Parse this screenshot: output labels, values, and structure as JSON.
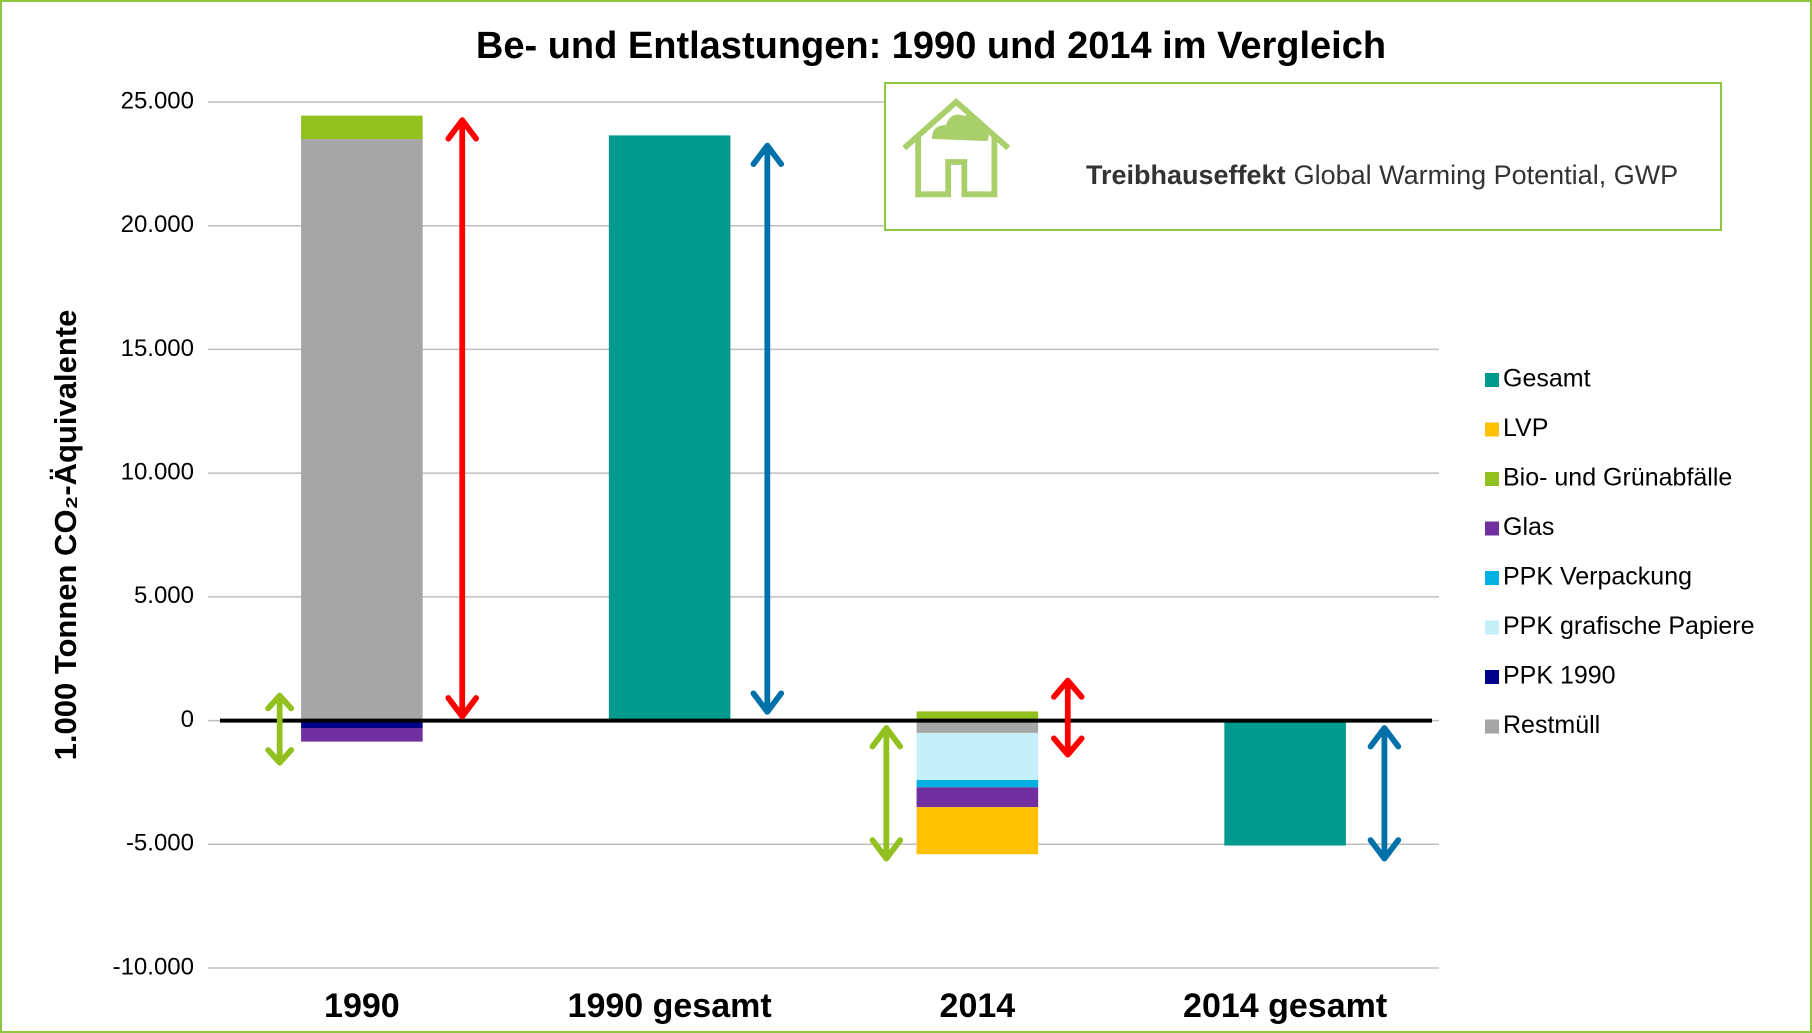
{
  "chart_data": {
    "type": "stacked_bar",
    "title": "Be- und Entlastungen: 1990 und 2014 im Vergleich",
    "ylabel": "1.000 Tonnen CO₂-Äquivalente",
    "annotation": {
      "bold": "Treibhauseffekt",
      "text": "Global Warming Potential, GWP"
    },
    "categories": [
      "1990",
      "1990 gesamt",
      "2014",
      "2014 gesamt"
    ],
    "series": [
      {
        "name": "Gesamt",
        "color": "#009a8e",
        "values": [
          null,
          23650,
          null,
          -5050
        ]
      },
      {
        "name": "LVP",
        "color": "#ffc000",
        "values": [
          null,
          null,
          -1900,
          null
        ]
      },
      {
        "name": "Bio- und Grünabfälle",
        "color": "#92c01f",
        "values": [
          950,
          null,
          370,
          null
        ]
      },
      {
        "name": "Glas",
        "color": "#7030a0",
        "values": [
          -550,
          null,
          -800,
          null
        ]
      },
      {
        "name": "PPK Verpackung",
        "color": "#00b0e0",
        "values": [
          null,
          null,
          -300,
          null
        ]
      },
      {
        "name": "PPK grafische Papiere",
        "color": "#c5f0fa",
        "values": [
          null,
          null,
          -1900,
          null
        ]
      },
      {
        "name": "PPK 1990",
        "color": "#00008b",
        "values": [
          -300,
          null,
          null,
          null
        ]
      },
      {
        "name": "Restmüll",
        "color": "#a6a6a6",
        "values": [
          23500,
          null,
          -500,
          null
        ]
      }
    ],
    "ylim": [
      -10000,
      25000
    ],
    "yticks": [
      {
        "value": -10000,
        "label": "-10.000"
      },
      {
        "value": -5000,
        "label": "-5.000"
      },
      0,
      {
        "value": 5000,
        "label": "5.000"
      },
      {
        "value": 10000,
        "label": "10.000"
      },
      {
        "value": 15000,
        "label": "15.000"
      },
      {
        "value": 20000,
        "label": "20.000"
      },
      {
        "value": 25000,
        "label": "25.000"
      }
    ],
    "grid": true,
    "legend": "right"
  }
}
